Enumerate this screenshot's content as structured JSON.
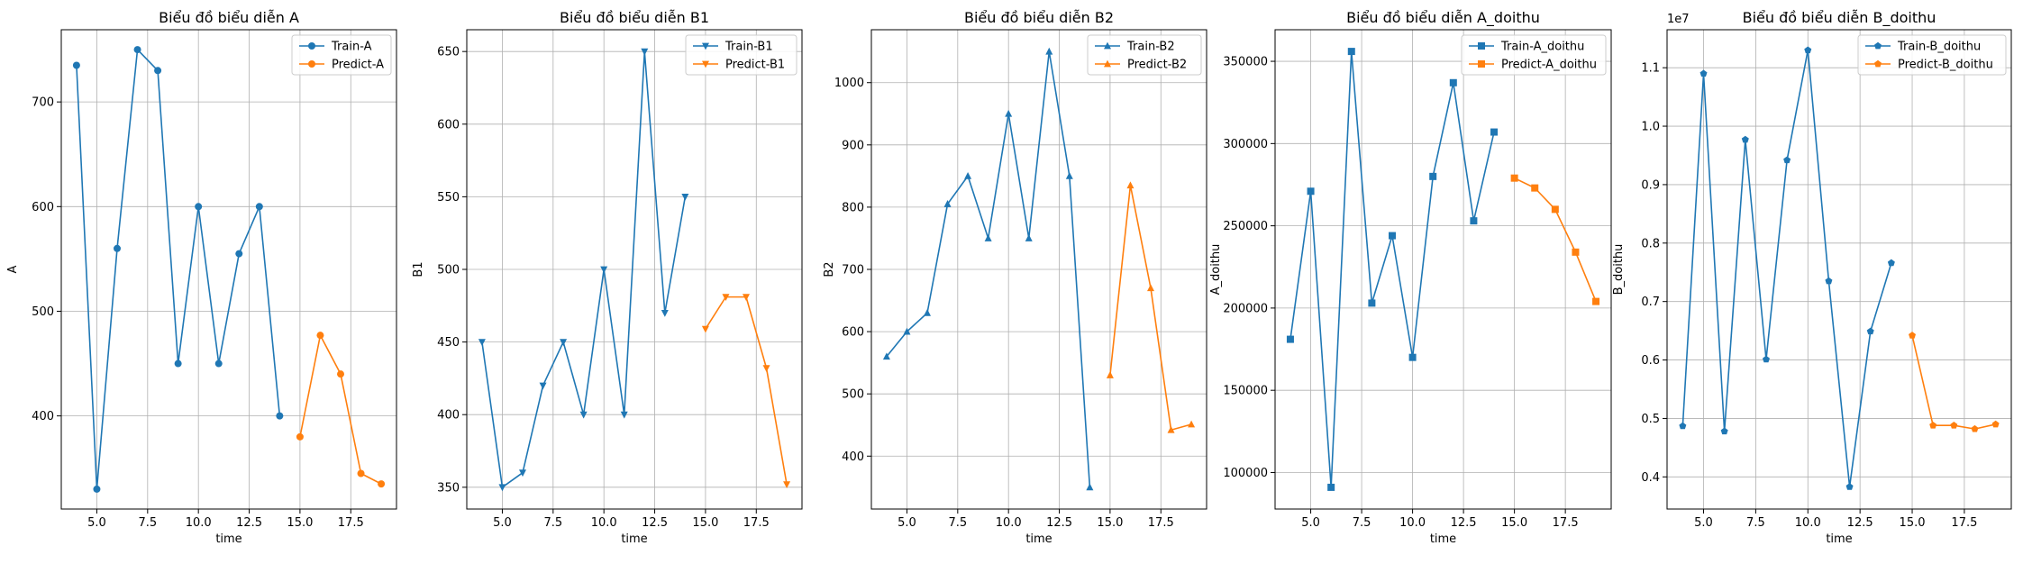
{
  "chart_data": [
    {
      "type": "line",
      "title": "Biểu đồ biểu diễn A",
      "xlabel": "time",
      "ylabel": "A",
      "xlim": [
        3.25,
        19.75
      ],
      "ylim": [
        311,
        769
      ],
      "xticks": [
        5,
        7.5,
        10,
        12.5,
        15,
        17.5
      ],
      "xtick_labels": [
        "5.0",
        "7.5",
        "10.0",
        "12.5",
        "15.0",
        "17.5"
      ],
      "yticks": [
        400,
        500,
        600,
        700
      ],
      "ytick_labels": [
        "400",
        "500",
        "600",
        "700"
      ],
      "y_offset_text": "",
      "grid": true,
      "legend_position": "upper-right",
      "series": [
        {
          "name": "Train-A",
          "color": "#1f77b4",
          "marker": "circle",
          "x": [
            4,
            5,
            6,
            7,
            8,
            9,
            10,
            11,
            12,
            13,
            14
          ],
          "y": [
            735,
            330,
            560,
            750,
            730,
            450,
            600,
            450,
            555,
            600,
            400
          ]
        },
        {
          "name": "Predict-A",
          "color": "#ff7f0e",
          "marker": "circle",
          "x": [
            15,
            16,
            17,
            18,
            19
          ],
          "y": [
            380,
            477,
            440,
            345,
            335
          ]
        }
      ]
    },
    {
      "type": "line",
      "title": "Biểu đồ biểu diễn B1",
      "xlabel": "time",
      "ylabel": "B1",
      "xlim": [
        3.25,
        19.75
      ],
      "ylim": [
        335,
        665
      ],
      "xticks": [
        5,
        7.5,
        10,
        12.5,
        15,
        17.5
      ],
      "xtick_labels": [
        "5.0",
        "7.5",
        "10.0",
        "12.5",
        "15.0",
        "17.5"
      ],
      "yticks": [
        350,
        400,
        450,
        500,
        550,
        600,
        650
      ],
      "ytick_labels": [
        "350",
        "400",
        "450",
        "500",
        "550",
        "600",
        "650"
      ],
      "y_offset_text": "",
      "grid": true,
      "legend_position": "upper-right",
      "series": [
        {
          "name": "Train-B1",
          "color": "#1f77b4",
          "marker": "triangle-down",
          "x": [
            4,
            5,
            6,
            7,
            8,
            9,
            10,
            11,
            12,
            13,
            14
          ],
          "y": [
            450,
            350,
            360,
            420,
            450,
            400,
            500,
            400,
            650,
            470,
            550
          ]
        },
        {
          "name": "Predict-B1",
          "color": "#ff7f0e",
          "marker": "triangle-down",
          "x": [
            15,
            16,
            17,
            18,
            19
          ],
          "y": [
            459,
            481,
            481,
            432,
            352
          ]
        }
      ]
    },
    {
      "type": "line",
      "title": "Biểu đồ biểu diễn B2",
      "xlabel": "time",
      "ylabel": "B2",
      "xlim": [
        3.25,
        19.75
      ],
      "ylim": [
        315,
        1085
      ],
      "xticks": [
        5,
        7.5,
        10,
        12.5,
        15,
        17.5
      ],
      "xtick_labels": [
        "5.0",
        "7.5",
        "10.0",
        "12.5",
        "15.0",
        "17.5"
      ],
      "yticks": [
        400,
        500,
        600,
        700,
        800,
        900,
        1000
      ],
      "ytick_labels": [
        "400",
        "500",
        "600",
        "700",
        "800",
        "900",
        "1000"
      ],
      "y_offset_text": "",
      "grid": true,
      "legend_position": "upper-right",
      "series": [
        {
          "name": "Train-B2",
          "color": "#1f77b4",
          "marker": "triangle-up",
          "x": [
            4,
            5,
            6,
            7,
            8,
            9,
            10,
            11,
            12,
            13,
            14
          ],
          "y": [
            560,
            600,
            630,
            805,
            850,
            750,
            950,
            750,
            1050,
            850,
            350
          ]
        },
        {
          "name": "Predict-B2",
          "color": "#ff7f0e",
          "marker": "triangle-up",
          "x": [
            15,
            16,
            17,
            18,
            19
          ],
          "y": [
            530,
            835,
            670,
            442,
            451
          ]
        }
      ]
    },
    {
      "type": "line",
      "title": "Biểu đồ biểu diễn A_doithu",
      "xlabel": "time",
      "ylabel": "A_doithu",
      "xlim": [
        3.25,
        19.75
      ],
      "ylim": [
        77800,
        369200
      ],
      "xticks": [
        5,
        7.5,
        10,
        12.5,
        15,
        17.5
      ],
      "xtick_labels": [
        "5.0",
        "7.5",
        "10.0",
        "12.5",
        "15.0",
        "17.5"
      ],
      "yticks": [
        100000,
        150000,
        200000,
        250000,
        300000,
        350000
      ],
      "ytick_labels": [
        "100000",
        "150000",
        "200000",
        "250000",
        "300000",
        "350000"
      ],
      "y_offset_text": "",
      "grid": true,
      "legend_position": "upper-right",
      "series": [
        {
          "name": "Train-A_doithu",
          "color": "#1f77b4",
          "marker": "square",
          "x": [
            4,
            5,
            6,
            7,
            8,
            9,
            10,
            11,
            12,
            13,
            14
          ],
          "y": [
            181000,
            271000,
            91000,
            356000,
            203000,
            244000,
            170000,
            280000,
            337000,
            253000,
            307000
          ]
        },
        {
          "name": "Predict-A_doithu",
          "color": "#ff7f0e",
          "marker": "square",
          "x": [
            15,
            16,
            17,
            18,
            19
          ],
          "y": [
            279000,
            273000,
            260000,
            234000,
            204000
          ]
        }
      ]
    },
    {
      "type": "line",
      "title": "Biểu đồ biểu diễn B_doithu",
      "xlabel": "time",
      "ylabel": "B_doithu",
      "xlim": [
        3.25,
        19.75
      ],
      "ylim": [
        3450000,
        11650000
      ],
      "xticks": [
        5,
        7.5,
        10,
        12.5,
        15,
        17.5
      ],
      "xtick_labels": [
        "5.0",
        "7.5",
        "10.0",
        "12.5",
        "15.0",
        "17.5"
      ],
      "yticks": [
        4000000,
        5000000,
        6000000,
        7000000,
        8000000,
        9000000,
        10000000,
        11000000
      ],
      "ytick_labels": [
        "0.4",
        "0.5",
        "0.6",
        "0.7",
        "0.8",
        "0.9",
        "1.0",
        "1.1"
      ],
      "y_offset_text": "1e7",
      "grid": true,
      "legend_position": "upper-right",
      "series": [
        {
          "name": "Train-B_doithu",
          "color": "#1f77b4",
          "marker": "pentagon",
          "x": [
            4,
            5,
            6,
            7,
            8,
            9,
            10,
            11,
            12,
            13,
            14
          ],
          "y": [
            4870000,
            10900000,
            4780000,
            9770000,
            6010000,
            9420000,
            11300000,
            7350000,
            3830000,
            6490000,
            7660000
          ]
        },
        {
          "name": "Predict-B_doithu",
          "color": "#ff7f0e",
          "marker": "pentagon",
          "x": [
            15,
            16,
            17,
            18,
            19
          ],
          "y": [
            6420000,
            4880000,
            4880000,
            4820000,
            4900000
          ]
        }
      ]
    }
  ]
}
